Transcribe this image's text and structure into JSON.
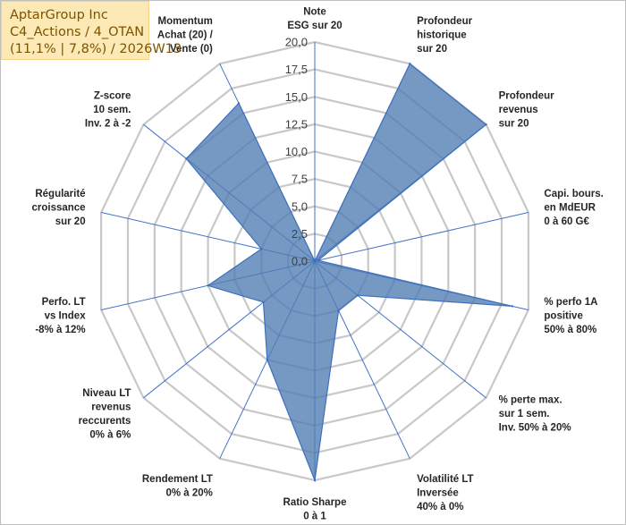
{
  "header": {
    "company": "AptarGroup Inc",
    "portfolio": "C4_Actions / 4_OTAN",
    "stats": "(11,1% | 7,8%) / 2026W13"
  },
  "colors": {
    "fill": "#4f7cb4",
    "stroke": "#3c6fbf",
    "grid": "#c8c8c8",
    "spoke": "#4472c4",
    "title_bg": "#fde9b6"
  },
  "chart_data": {
    "type": "radar",
    "rmin": 0,
    "rmax": 20,
    "ticks": [
      "0,0",
      "2,5",
      "5,0",
      "7,5",
      "10,0",
      "12,5",
      "15,0",
      "17,5",
      "20,0"
    ],
    "tick_values": [
      0,
      2.5,
      5,
      7.5,
      10,
      12.5,
      15,
      17.5,
      20
    ],
    "axes": [
      {
        "lines": [
          "Note",
          "ESG sur 20"
        ],
        "value": 0
      },
      {
        "lines": [
          "Profondeur",
          "historique",
          "sur 20"
        ],
        "value": 20
      },
      {
        "lines": [
          "Profondeur",
          "revenus",
          "sur 20"
        ],
        "value": 20
      },
      {
        "lines": [
          "Capi. bours.",
          "en MdEUR",
          "0 à 60 G€"
        ],
        "value": 0.3
      },
      {
        "lines": [
          "% perfo 1A",
          "positive",
          "50% à 80%"
        ],
        "value": 18.5
      },
      {
        "lines": [
          "% perte max.",
          "sur 1 sem.",
          "Inv. 50% à 20%"
        ],
        "value": 5
      },
      {
        "lines": [
          "Volatilité LT",
          "Inversée",
          "40% à 0%"
        ],
        "value": 5
      },
      {
        "lines": [
          "Ratio Sharpe",
          "0 à 1"
        ],
        "value": 20
      },
      {
        "lines": [
          "Rendement LT",
          "0% à 20%"
        ],
        "value": 10
      },
      {
        "lines": [
          "Niveau LT",
          "revenus",
          "reccurents",
          "0% à 6%"
        ],
        "value": 6
      },
      {
        "lines": [
          "Perfo. LT",
          "vs Index",
          "-8% à 12%"
        ],
        "value": 10
      },
      {
        "lines": [
          "Régularité",
          "croissance",
          "sur 20"
        ],
        "value": 5
      },
      {
        "lines": [
          "Z-score",
          "10 sem.",
          "Inv. 2 à -2"
        ],
        "value": 15
      },
      {
        "lines": [
          "Momentum",
          "Achat (20) /",
          "Vente (0)"
        ],
        "value": 16
      }
    ]
  }
}
